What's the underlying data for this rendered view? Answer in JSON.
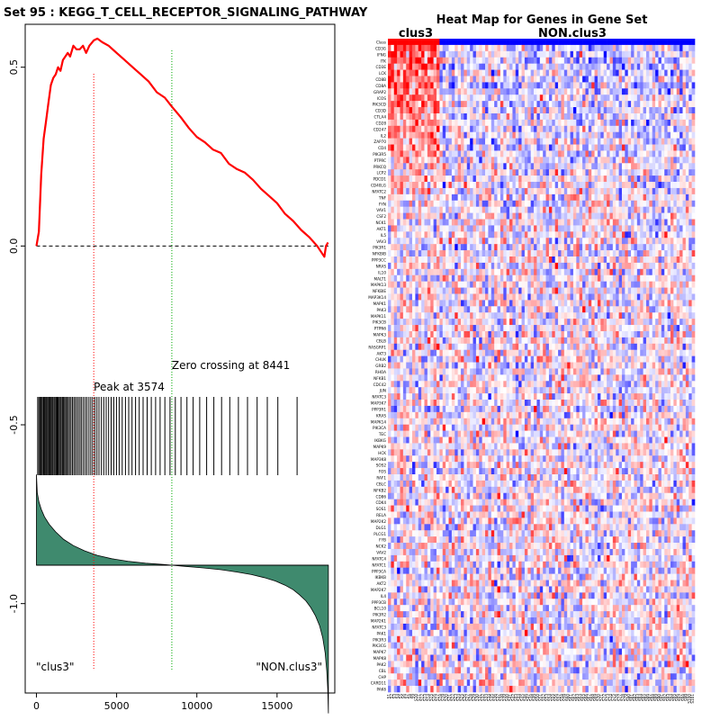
{
  "chart_data": [
    {
      "type": "line",
      "title": "Set  95 : KEGG_T_CELL_RECEPTOR_SIGNALING_PATHWAY",
      "xlabel": "",
      "ylabel": "",
      "xlim": [
        -700,
        18600
      ],
      "ylim": [
        -1.25,
        0.62
      ],
      "x_ticks": [
        0,
        5000,
        10000,
        15000
      ],
      "x_tick_labels": [
        "0",
        "5000",
        "10000",
        "15000"
      ],
      "y_ticks": [
        0.5,
        0.0,
        -0.5,
        -1.0
      ],
      "y_tick_labels": [
        "0.5",
        "0.0",
        "-0.5",
        "-1.0"
      ],
      "series": [
        {
          "name": "running enrichment score",
          "color": "#ff0000",
          "x": [
            0,
            150,
            300,
            450,
            600,
            750,
            900,
            1050,
            1200,
            1350,
            1500,
            1650,
            1800,
            1950,
            2100,
            2300,
            2500,
            2700,
            2900,
            3100,
            3300,
            3574,
            3800,
            4100,
            4500,
            5000,
            5500,
            6000,
            6500,
            7000,
            7500,
            8000,
            8441,
            9000,
            9500,
            10000,
            10500,
            11000,
            11500,
            12000,
            12500,
            13000,
            13500,
            14000,
            14500,
            15000,
            15500,
            16000,
            16500,
            17000,
            17500,
            17950,
            18050,
            18180
          ],
          "y": [
            0.0,
            0.04,
            0.2,
            0.3,
            0.35,
            0.4,
            0.45,
            0.47,
            0.48,
            0.5,
            0.49,
            0.52,
            0.53,
            0.54,
            0.53,
            0.56,
            0.55,
            0.55,
            0.56,
            0.54,
            0.56,
            0.575,
            0.58,
            0.57,
            0.56,
            0.54,
            0.52,
            0.5,
            0.48,
            0.46,
            0.43,
            0.415,
            0.39,
            0.36,
            0.33,
            0.305,
            0.29,
            0.27,
            0.26,
            0.23,
            0.215,
            0.205,
            0.185,
            0.16,
            0.14,
            0.12,
            0.09,
            0.07,
            0.045,
            0.025,
            0.0,
            -0.03,
            0.0,
            0.01
          ]
        }
      ],
      "zero_line": 0.0,
      "hit_positions": [
        80,
        150,
        220,
        290,
        350,
        420,
        480,
        540,
        600,
        660,
        720,
        790,
        850,
        910,
        970,
        1030,
        1100,
        1160,
        1230,
        1290,
        1350,
        1420,
        1480,
        1550,
        1620,
        1690,
        1760,
        1830,
        1900,
        1980,
        2060,
        2150,
        2240,
        2330,
        2420,
        2520,
        2620,
        2720,
        2820,
        2930,
        3040,
        3150,
        3270,
        3390,
        3510,
        3640,
        3770,
        3900,
        4050,
        4200,
        4350,
        4500,
        4660,
        4820,
        4990,
        5160,
        5350,
        5550,
        5750,
        5960,
        6180,
        6410,
        6650,
        6900,
        7160,
        7430,
        7710,
        8010,
        8330,
        8660,
        9010,
        9380,
        9770,
        10180,
        10610,
        11060,
        11540,
        12050,
        12590,
        13160,
        13760,
        14390,
        15050,
        16250
      ],
      "peak_label": "Peak at 3574",
      "peak_x": 3574,
      "zero_crossing_label": "Zero crossing at 8441",
      "zero_crossing_x": 8441,
      "ranked_metric": {
        "x": [
          0,
          50,
          150,
          300,
          500,
          800,
          1200,
          1700,
          2300,
          3000,
          3800,
          4700,
          5700,
          6800,
          8000,
          8441,
          9200,
          10400,
          11500,
          12500,
          13400,
          14200,
          14900,
          15500,
          16000,
          16400,
          16800,
          17100,
          17400,
          17650,
          17850,
          18000,
          18100,
          18160,
          18200
        ],
        "y": [
          0.6,
          0.48,
          0.42,
          0.37,
          0.32,
          0.27,
          0.22,
          0.17,
          0.13,
          0.095,
          0.065,
          0.043,
          0.026,
          0.013,
          0.004,
          0.0,
          -0.007,
          -0.018,
          -0.03,
          -0.045,
          -0.062,
          -0.082,
          -0.105,
          -0.132,
          -0.162,
          -0.196,
          -0.236,
          -0.28,
          -0.335,
          -0.4,
          -0.48,
          -0.58,
          -0.7,
          -0.82,
          -0.98
        ],
        "fill_color": "#3f8a6e"
      },
      "left_group_label": "\"clus3\"",
      "right_group_label": "\"NON.clus3\""
    },
    {
      "type": "heatmap",
      "title": "Heat Map for Genes in Gene Set",
      "group_labels": [
        "clus3",
        "NON.clus3"
      ],
      "group_colors": [
        "#ff0000",
        "#0000ff"
      ],
      "n_columns": 101,
      "n_clus3_columns": 17,
      "row_labels": [
        "Class",
        "CD3G",
        "IFNG",
        "ITK",
        "CD3E",
        "LCK",
        "CD8B",
        "CD8A",
        "GRAP2",
        "ICOS",
        "PIK3CD",
        "CD3D",
        "CTLA4",
        "CD28",
        "CD247",
        "IL2",
        "ZAP70",
        "CD4",
        "PIK3R5",
        "PTPRC",
        "PRKCQ",
        "LCP2",
        "PDCD1",
        "CD40LG",
        "NFATC2",
        "TNF",
        "FYN",
        "VAV1",
        "CSF2",
        "NCK1",
        "AKT1",
        "IL5",
        "VAV3",
        "PIK3R1",
        "NFKBIB",
        "PPP3CC",
        "NRAS",
        "IL10",
        "MALT1",
        "MAPK13",
        "NFKBIE",
        "MAP3K14",
        "MAPK1",
        "PAK3",
        "MAPK11",
        "PIK3CB",
        "PTPN6",
        "MAPK3",
        "CBLB",
        "RASGRP1",
        "AKT3",
        "CHUK",
        "GRB2",
        "RHOA",
        "NFKB1",
        "CDC42",
        "JUN",
        "NFATC3",
        "MAP3K7",
        "PPP3R1",
        "KRAS",
        "MAPK14",
        "PIK3CA",
        "TEC",
        "IKBKG",
        "MAPK9",
        "HCK",
        "MAP3K8",
        "SOS2",
        "FOS",
        "RAF1",
        "CBLC",
        "NFKB2",
        "CD86",
        "CDK4",
        "SOS1",
        "RELA",
        "MAP2K2",
        "DLG1",
        "PLCG1",
        "FYB",
        "NCK2",
        "VAV2",
        "NFATC4",
        "NFATC1",
        "PPP3CA",
        "IKBKB",
        "AKT2",
        "MAP2K7",
        "IL4",
        "PPP3CB",
        "BCL10",
        "PIK3R2",
        "MAP2K1",
        "NFATC3",
        "PAK1",
        "PIK3R3",
        "PIK3CG",
        "MAPK7",
        "MAPK8",
        "PAK2",
        "CBL",
        "CHP",
        "CARD11",
        "PAK6"
      ],
      "column_labels": [
        "S1",
        "S2",
        "S3",
        "S4",
        "S5",
        "S6",
        "S7",
        "S8",
        "S9",
        "S10",
        "S11",
        "S12",
        "S13",
        "S14",
        "S15",
        "S16",
        "S17",
        "S18",
        "S19",
        "S20",
        "S21",
        "S22",
        "S23",
        "S24",
        "S25",
        "S26",
        "S27",
        "S28",
        "S29",
        "S30",
        "S31",
        "S32",
        "S33",
        "S34",
        "S35",
        "S36",
        "S37",
        "S38",
        "S39",
        "S40",
        "S41",
        "S42",
        "S43",
        "S44",
        "S45",
        "S46",
        "S47",
        "S48",
        "S49",
        "S50",
        "S51",
        "S52",
        "S53",
        "S54",
        "S55",
        "S56",
        "S57",
        "S58",
        "S59",
        "S60",
        "S61",
        "S62",
        "S63",
        "S64",
        "S65",
        "S66",
        "S67",
        "S68",
        "S69",
        "S70",
        "S71",
        "S72",
        "S73",
        "S74",
        "S75",
        "S76",
        "S77",
        "S78",
        "S79",
        "S80",
        "S81",
        "S82",
        "S83",
        "S84",
        "S85",
        "S86",
        "S87",
        "S88",
        "S89",
        "S90",
        "S91",
        "S92",
        "S93",
        "S94",
        "S95",
        "S96",
        "S97",
        "S98",
        "S99",
        "S100",
        "S101"
      ],
      "colors": {
        "high": "#ff0000",
        "mid": "#ffffff",
        "low": "#0000ff"
      },
      "value_range": [
        -3,
        3
      ],
      "seed": 95
    }
  ]
}
